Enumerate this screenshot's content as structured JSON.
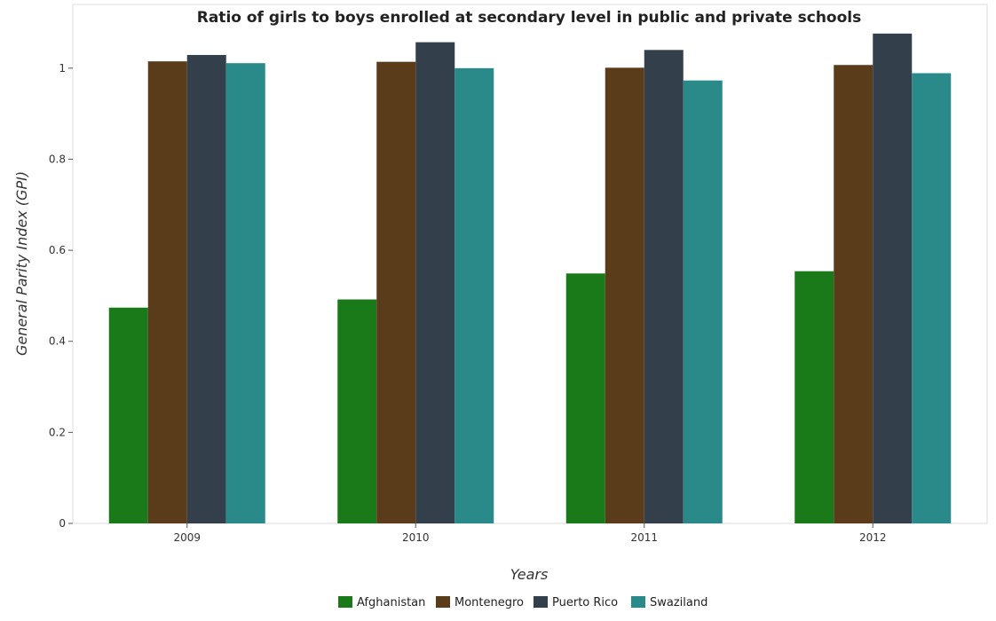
{
  "chart_data": {
    "type": "bar",
    "title": "Ratio of girls to boys enrolled at secondary level in public and private schools",
    "xlabel": "Years",
    "ylabel": "General Parity Index (GPI)",
    "categories": [
      "2009",
      "2010",
      "2011",
      "2012"
    ],
    "ylim": [
      0,
      1.14
    ],
    "yticks": [
      "0",
      "0.2",
      "0.4",
      "0.6",
      "0.8",
      "1"
    ],
    "ytick_values": [
      0,
      0.2,
      0.4,
      0.6,
      0.8,
      1.0
    ],
    "grid": false,
    "legend_position": "bottom-center",
    "series": [
      {
        "name": "Afghanistan",
        "color": "#1a7a1a",
        "values": [
          0.474,
          0.492,
          0.549,
          0.554
        ]
      },
      {
        "name": "Montenegro",
        "color": "#5a3b1a",
        "values": [
          1.015,
          1.014,
          1.001,
          1.007
        ]
      },
      {
        "name": "Puerto Rico",
        "color": "#333f4a",
        "values": [
          1.029,
          1.057,
          1.04,
          1.076
        ]
      },
      {
        "name": "Swaziland",
        "color": "#2a8a8a",
        "values": [
          1.011,
          1.0,
          0.973,
          0.989
        ]
      }
    ]
  }
}
